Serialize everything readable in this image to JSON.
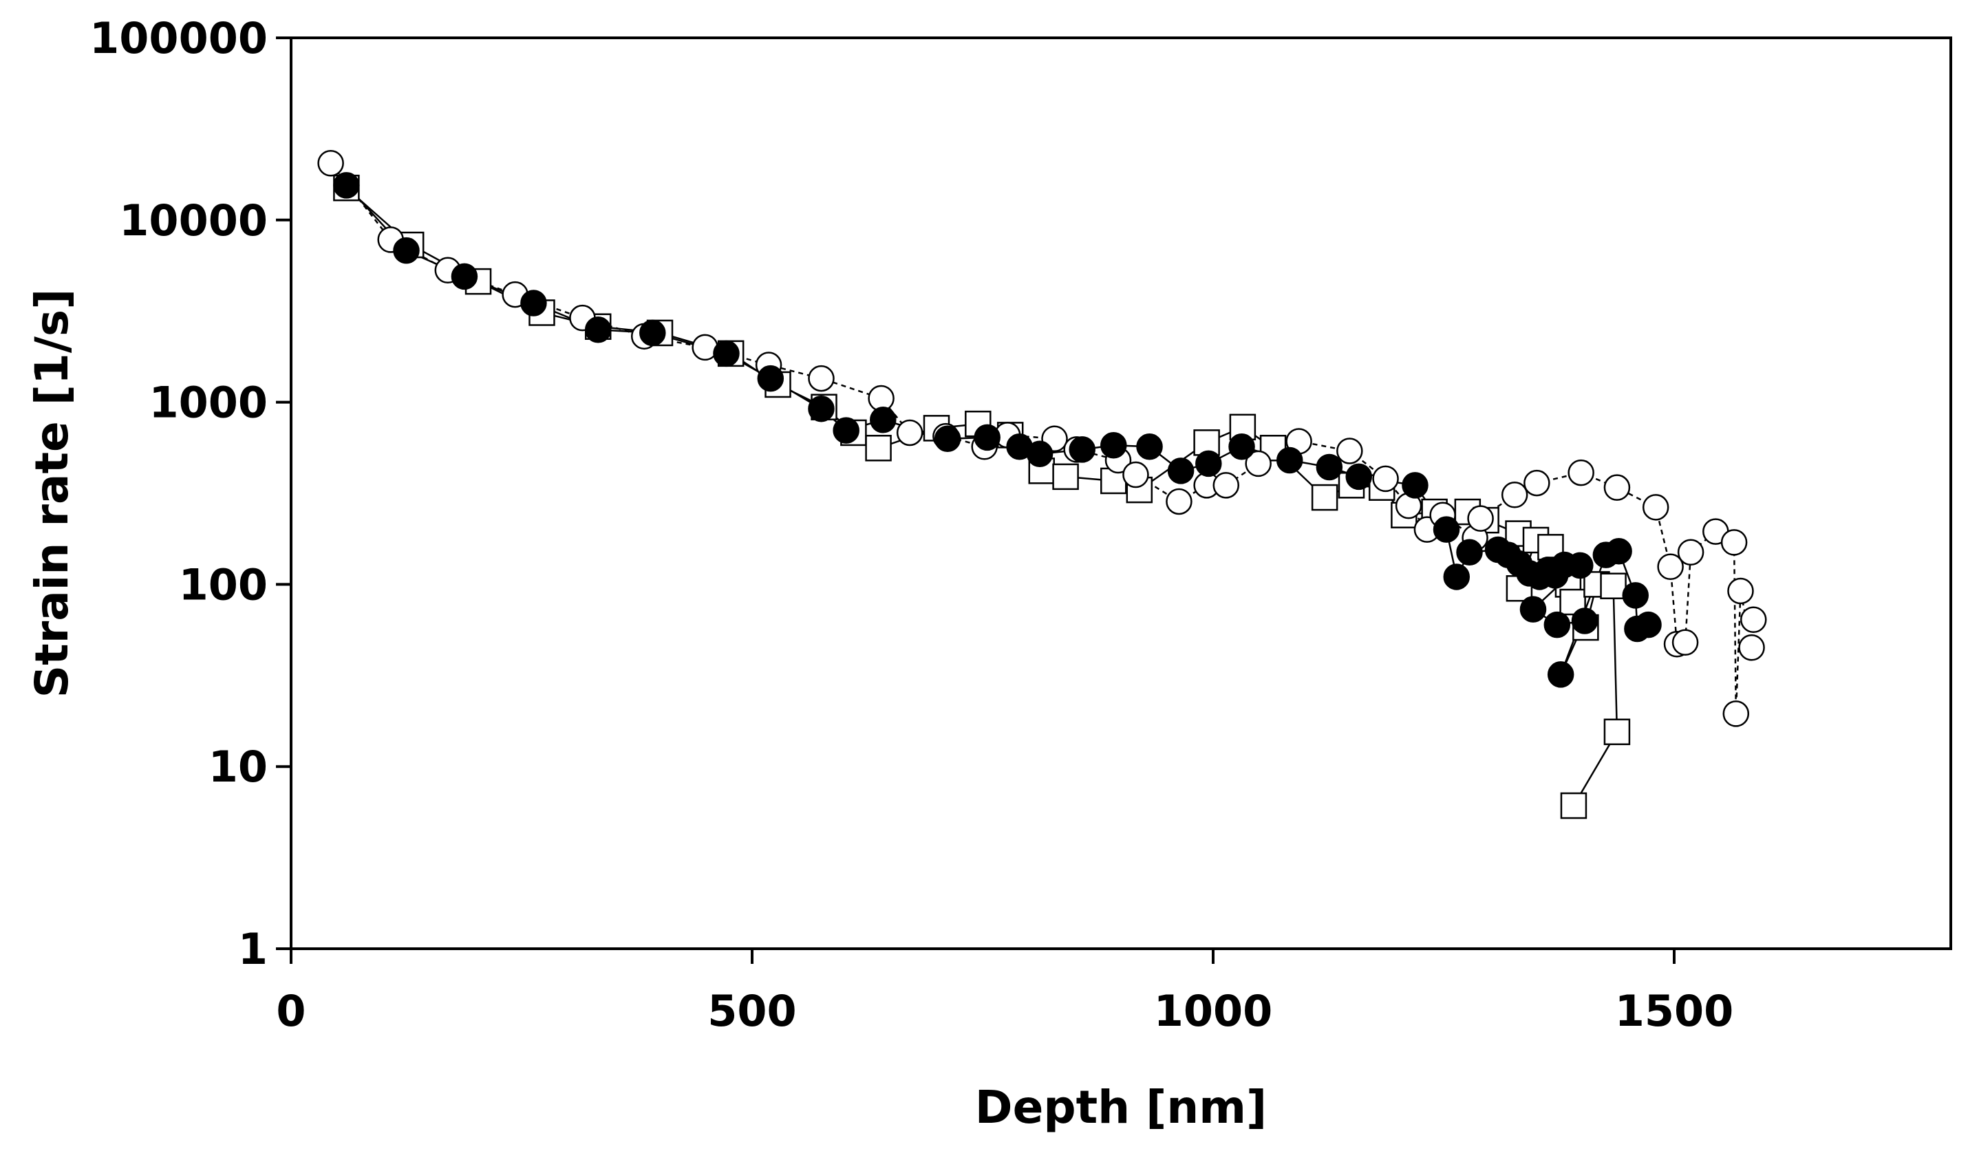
{
  "chart_data": {
    "type": "scatter",
    "title": "",
    "xlabel": "Depth [nm]",
    "ylabel": "Strain rate [1/s]",
    "xlim": [
      0,
      1800
    ],
    "ylim": [
      1,
      100000
    ],
    "yscale": "log",
    "grid": false,
    "legend": "none",
    "x_ticks": [
      0,
      500,
      1000,
      1500
    ],
    "x_tick_labels": [
      "0",
      "500",
      "1000",
      "1500"
    ],
    "y_ticks": [
      1,
      10,
      100,
      1000,
      10000,
      100000
    ],
    "y_tick_labels": [
      "1",
      "10",
      "100",
      "1000",
      "10000",
      "100000"
    ],
    "series": [
      {
        "name": "filled circles",
        "marker": "circle",
        "fill": "#000000",
        "line": "solid",
        "points": [
          [
            60,
            15500
          ],
          [
            125,
            6800
          ],
          [
            188,
            4900
          ],
          [
            263,
            3500
          ],
          [
            333,
            2500
          ],
          [
            392,
            2400
          ],
          [
            472,
            1850
          ],
          [
            520,
            1350
          ],
          [
            575,
            920
          ],
          [
            602,
            700
          ],
          [
            642,
            800
          ],
          [
            712,
            630
          ],
          [
            755,
            640
          ],
          [
            790,
            570
          ],
          [
            812,
            520
          ],
          [
            858,
            550
          ],
          [
            892,
            580
          ],
          [
            931,
            570
          ],
          [
            965,
            420
          ],
          [
            995,
            460
          ],
          [
            1031,
            570
          ],
          [
            1083,
            480
          ],
          [
            1126,
            440
          ],
          [
            1158,
            390
          ],
          [
            1219,
            350
          ],
          [
            1253,
            200
          ],
          [
            1264,
            110
          ],
          [
            1278,
            150
          ],
          [
            1309,
            155
          ],
          [
            1320,
            145
          ],
          [
            1332,
            130
          ],
          [
            1343,
            115
          ],
          [
            1354,
            110
          ],
          [
            1363,
            120
          ],
          [
            1371,
            112
          ],
          [
            1381,
            128
          ],
          [
            1398,
            127
          ],
          [
            1347,
            73
          ],
          [
            1373,
            60
          ],
          [
            1403,
            63
          ],
          [
            1377,
            32
          ],
          [
            1426,
            145
          ],
          [
            1440,
            152
          ],
          [
            1458,
            87
          ],
          [
            1460,
            57
          ],
          [
            1472,
            60
          ]
        ]
      },
      {
        "name": "open squares",
        "marker": "square",
        "fill": "#ffffff",
        "line": "solid",
        "points": [
          [
            60,
            15000
          ],
          [
            130,
            7300
          ],
          [
            203,
            4600
          ],
          [
            272,
            3100
          ],
          [
            333,
            2600
          ],
          [
            400,
            2400
          ],
          [
            477,
            1850
          ],
          [
            528,
            1250
          ],
          [
            578,
            940
          ],
          [
            610,
            680
          ],
          [
            637,
            560
          ],
          [
            700,
            720
          ],
          [
            745,
            760
          ],
          [
            780,
            660
          ],
          [
            814,
            420
          ],
          [
            840,
            390
          ],
          [
            892,
            370
          ],
          [
            920,
            330
          ],
          [
            993,
            600
          ],
          [
            1032,
            730
          ],
          [
            1065,
            560
          ],
          [
            1121,
            300
          ],
          [
            1150,
            350
          ],
          [
            1183,
            340
          ],
          [
            1207,
            240
          ],
          [
            1240,
            250
          ],
          [
            1276,
            250
          ],
          [
            1296,
            225
          ],
          [
            1331,
            190
          ],
          [
            1332,
            95
          ],
          [
            1350,
            175
          ],
          [
            1366,
            160
          ],
          [
            1375,
            120
          ],
          [
            1385,
            100
          ],
          [
            1390,
            80
          ],
          [
            1404,
            58
          ],
          [
            1416,
            100
          ],
          [
            1434,
            98
          ],
          [
            1438,
            15.5
          ],
          [
            1391,
            6.1
          ]
        ]
      },
      {
        "name": "open circles",
        "marker": "circle",
        "fill": "#ffffff",
        "line": "dashed",
        "points": [
          [
            43,
            20500
          ],
          [
            108,
            7800
          ],
          [
            170,
            5300
          ],
          [
            243,
            3900
          ],
          [
            316,
            2900
          ],
          [
            383,
            2300
          ],
          [
            449,
            2000
          ],
          [
            518,
            1600
          ],
          [
            575,
            1350
          ],
          [
            640,
            1050
          ],
          [
            671,
            680
          ],
          [
            710,
            650
          ],
          [
            752,
            570
          ],
          [
            777,
            660
          ],
          [
            828,
            630
          ],
          [
            852,
            550
          ],
          [
            897,
            480
          ],
          [
            916,
            400
          ],
          [
            963,
            285
          ],
          [
            993,
            350
          ],
          [
            1014,
            350
          ],
          [
            1049,
            460
          ],
          [
            1093,
            610
          ],
          [
            1148,
            540
          ],
          [
            1187,
            380
          ],
          [
            1212,
            270
          ],
          [
            1232,
            200
          ],
          [
            1249,
            240
          ],
          [
            1284,
            180
          ],
          [
            1290,
            230
          ],
          [
            1327,
            310
          ],
          [
            1351,
            360
          ],
          [
            1399,
            410
          ],
          [
            1438,
            340
          ],
          [
            1480,
            265
          ],
          [
            1496,
            125
          ],
          [
            1503,
            47
          ],
          [
            1512,
            48
          ],
          [
            1518,
            150
          ],
          [
            1545,
            195
          ],
          [
            1565,
            170
          ],
          [
            1567,
            19.5
          ],
          [
            1572,
            92
          ],
          [
            1584,
            45
          ],
          [
            1586,
            64
          ]
        ]
      }
    ]
  }
}
